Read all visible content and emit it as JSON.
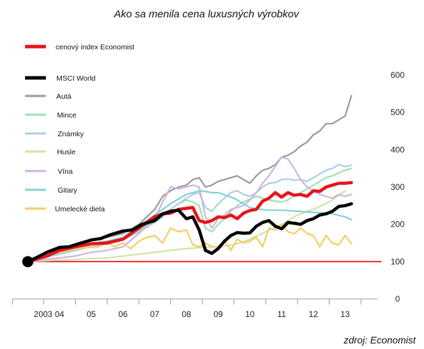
{
  "chart_data": {
    "type": "line",
    "title": "Ako sa menila cena luxusných výrobkov",
    "source": "zdroj: Economist",
    "x_tick_labels": [
      "2003",
      "04",
      "05",
      "06",
      "07",
      "08",
      "09",
      "10",
      "11",
      "12",
      "13"
    ],
    "ylim": [
      0,
      600
    ],
    "y_ticks": [
      0,
      100,
      200,
      300,
      400,
      500,
      600
    ],
    "y_tick_labels": [
      "0",
      "100",
      "200",
      "300",
      "400",
      "500",
      "600"
    ],
    "y_axis_position": "right",
    "grid": false,
    "baseline": {
      "value": 100,
      "color": "#e8000b"
    },
    "start_marker": {
      "x": 2003,
      "y": 100,
      "color": "#000000"
    },
    "legend_position": "top-left",
    "xlim": [
      2003,
      2013.8
    ],
    "series": [
      {
        "name": "cenový index Economist",
        "color": "#e8131b",
        "emphasis": "thick",
        "x": [
          2003,
          2003.6,
          2004,
          2004.5,
          2005,
          2005.5,
          2006,
          2006.5,
          2007,
          2007.25,
          2007.5,
          2007.75,
          2008,
          2008.2,
          2008.4,
          2008.6,
          2008.8,
          2009,
          2009.2,
          2009.4,
          2009.6,
          2009.8,
          2010,
          2010.2,
          2010.4,
          2010.6,
          2010.8,
          2011,
          2011.2,
          2011.4,
          2011.6,
          2011.8,
          2012,
          2012.2,
          2012.4,
          2012.6,
          2012.8,
          2013,
          2013.2
        ],
        "y": [
          100,
          115,
          130,
          140,
          148,
          150,
          160,
          190,
          220,
          228,
          230,
          240,
          243,
          245,
          210,
          205,
          210,
          220,
          218,
          225,
          215,
          230,
          237,
          240,
          262,
          270,
          285,
          273,
          285,
          278,
          280,
          275,
          290,
          288,
          300,
          305,
          310,
          310,
          312
        ]
      },
      {
        "name": "MSCI World",
        "color": "#000000",
        "emphasis": "thick",
        "x": [
          2003,
          2003.3,
          2003.6,
          2004,
          2004.3,
          2004.6,
          2005,
          2005.3,
          2005.6,
          2006,
          2006.3,
          2006.6,
          2007,
          2007.25,
          2007.5,
          2007.75,
          2008,
          2008.2,
          2008.4,
          2008.6,
          2008.8,
          2009,
          2009.2,
          2009.4,
          2009.6,
          2009.8,
          2010,
          2010.2,
          2010.4,
          2010.6,
          2010.8,
          2011,
          2011.2,
          2011.4,
          2011.6,
          2011.8,
          2012,
          2012.2,
          2012.4,
          2012.6,
          2012.8,
          2013,
          2013.2
        ],
        "y": [
          100,
          112,
          125,
          138,
          140,
          148,
          158,
          162,
          172,
          182,
          185,
          200,
          210,
          228,
          235,
          238,
          215,
          220,
          185,
          130,
          122,
          135,
          155,
          170,
          178,
          176,
          177,
          195,
          205,
          210,
          195,
          188,
          205,
          203,
          200,
          210,
          215,
          225,
          228,
          235,
          248,
          250,
          255
        ]
      },
      {
        "name": "Autá",
        "color": "#999999",
        "emphasis": "normal",
        "x": [
          2003,
          2003.5,
          2004,
          2004.5,
          2005,
          2005.5,
          2006,
          2006.5,
          2007,
          2007.25,
          2007.5,
          2007.75,
          2008,
          2008.2,
          2008.4,
          2008.6,
          2008.8,
          2009,
          2009.2,
          2009.4,
          2009.6,
          2009.8,
          2010,
          2010.2,
          2010.4,
          2010.6,
          2010.8,
          2011,
          2011.2,
          2011.4,
          2011.6,
          2011.8,
          2012,
          2012.2,
          2012.4,
          2012.6,
          2012.8,
          2013,
          2013.2
        ],
        "y": [
          100,
          115,
          130,
          145,
          160,
          165,
          175,
          200,
          240,
          275,
          290,
          300,
          305,
          320,
          325,
          300,
          305,
          315,
          320,
          325,
          330,
          320,
          310,
          330,
          345,
          350,
          360,
          380,
          385,
          395,
          410,
          420,
          440,
          450,
          470,
          470,
          480,
          490,
          545
        ]
      },
      {
        "name": "Mince",
        "color": "#9fe0b4",
        "emphasis": "normal",
        "x": [
          2003,
          2003.5,
          2004,
          2004.5,
          2005,
          2005.5,
          2006,
          2006.5,
          2007,
          2007.25,
          2007.5,
          2007.75,
          2008,
          2008.2,
          2008.4,
          2008.6,
          2008.8,
          2009,
          2009.2,
          2009.4,
          2009.6,
          2009.8,
          2010,
          2010.2,
          2010.4,
          2010.6,
          2010.8,
          2011,
          2011.2,
          2011.4,
          2011.6,
          2011.8,
          2012,
          2012.2,
          2012.4,
          2012.6,
          2012.8,
          2013,
          2013.2
        ],
        "y": [
          100,
          112,
          122,
          135,
          145,
          155,
          165,
          185,
          210,
          220,
          240,
          255,
          265,
          260,
          250,
          190,
          180,
          200,
          215,
          235,
          250,
          260,
          268,
          275,
          270,
          265,
          262,
          260,
          265,
          278,
          285,
          295,
          305,
          315,
          325,
          330,
          338,
          345,
          350
        ]
      },
      {
        "name": "Známky",
        "color": "#a9cde8",
        "emphasis": "normal",
        "x": [
          2003,
          2003.5,
          2004,
          2004.5,
          2005,
          2005.5,
          2006,
          2006.5,
          2007,
          2007.25,
          2007.5,
          2007.75,
          2008,
          2008.2,
          2008.4,
          2008.6,
          2008.8,
          2009,
          2009.2,
          2009.4,
          2009.6,
          2009.8,
          2010,
          2010.2,
          2010.4,
          2010.6,
          2010.8,
          2011,
          2011.2,
          2011.4,
          2011.6,
          2011.8,
          2012,
          2012.2,
          2012.4,
          2012.6,
          2012.8,
          2013,
          2013.2
        ],
        "y": [
          100,
          110,
          120,
          130,
          140,
          148,
          158,
          180,
          205,
          220,
          240,
          255,
          270,
          280,
          285,
          245,
          235,
          255,
          270,
          285,
          290,
          280,
          275,
          285,
          300,
          310,
          312,
          320,
          322,
          318,
          320,
          315,
          325,
          335,
          345,
          350,
          360,
          355,
          358
        ]
      },
      {
        "name": "Husle",
        "color": "#d2e3a5",
        "emphasis": "normal",
        "x": [
          2003,
          2003.5,
          2004,
          2004.5,
          2005,
          2005.5,
          2006,
          2006.5,
          2007,
          2007.5,
          2008,
          2008.5,
          2009,
          2009.5,
          2010,
          2010.5,
          2011,
          2011.5,
          2012,
          2012.5,
          2013
        ],
        "y": [
          100,
          102,
          104,
          106,
          108,
          110,
          115,
          120,
          125,
          130,
          135,
          138,
          140,
          145,
          160,
          180,
          200,
          225,
          240,
          260,
          290
        ]
      },
      {
        "name": "Vína",
        "color": "#cfb3e2",
        "emphasis": "normal",
        "x": [
          2003,
          2003.5,
          2004,
          2004.5,
          2005,
          2005.5,
          2006,
          2006.5,
          2007,
          2007.25,
          2007.5,
          2007.75,
          2008,
          2008.2,
          2008.4,
          2008.6,
          2008.8,
          2009,
          2009.2,
          2009.4,
          2009.6,
          2009.8,
          2010,
          2010.2,
          2010.4,
          2010.6,
          2010.8,
          2011,
          2011.2,
          2011.4,
          2011.6,
          2011.8,
          2012,
          2012.2,
          2012.4,
          2012.6,
          2012.8,
          2013,
          2013.2
        ],
        "y": [
          100,
          105,
          110,
          115,
          125,
          130,
          140,
          175,
          215,
          260,
          300,
          295,
          300,
          305,
          300,
          220,
          190,
          215,
          225,
          240,
          245,
          250,
          265,
          285,
          310,
          330,
          355,
          380,
          375,
          350,
          320,
          300,
          290,
          280,
          275,
          270,
          280,
          275,
          280
        ]
      },
      {
        "name": "Gitary",
        "color": "#7fd3d3",
        "emphasis": "normal",
        "x": [
          2003,
          2003.5,
          2004,
          2004.5,
          2005,
          2005.5,
          2006,
          2006.5,
          2007,
          2007.25,
          2007.5,
          2007.75,
          2008,
          2008.2,
          2008.4,
          2008.6,
          2008.8,
          2009,
          2009.5,
          2010,
          2010.5,
          2011,
          2011.5,
          2012,
          2012.5,
          2013,
          2013.2
        ],
        "y": [
          100,
          110,
          125,
          138,
          148,
          155,
          165,
          195,
          225,
          240,
          255,
          268,
          280,
          285,
          290,
          288,
          285,
          285,
          270,
          245,
          238,
          238,
          235,
          232,
          230,
          220,
          212
        ]
      },
      {
        "name": "Umelecké diela",
        "color": "#f6cd63",
        "emphasis": "normal",
        "x": [
          2003,
          2003.5,
          2004,
          2004.5,
          2005,
          2005.25,
          2005.5,
          2005.75,
          2006,
          2006.25,
          2006.5,
          2006.75,
          2007,
          2007.25,
          2007.5,
          2007.75,
          2008,
          2008.2,
          2008.4,
          2008.6,
          2008.8,
          2009,
          2009.2,
          2009.4,
          2009.6,
          2009.8,
          2010,
          2010.2,
          2010.4,
          2010.6,
          2010.8,
          2011,
          2011.2,
          2011.4,
          2011.6,
          2011.8,
          2012,
          2012.2,
          2012.4,
          2012.6,
          2012.8,
          2013,
          2013.2
        ],
        "y": [
          100,
          115,
          125,
          135,
          138,
          140,
          150,
          140,
          150,
          135,
          155,
          165,
          170,
          150,
          190,
          180,
          185,
          145,
          140,
          150,
          140,
          140,
          155,
          130,
          160,
          150,
          155,
          165,
          140,
          190,
          185,
          200,
          180,
          175,
          190,
          175,
          170,
          140,
          170,
          150,
          145,
          170,
          148
        ]
      }
    ]
  }
}
